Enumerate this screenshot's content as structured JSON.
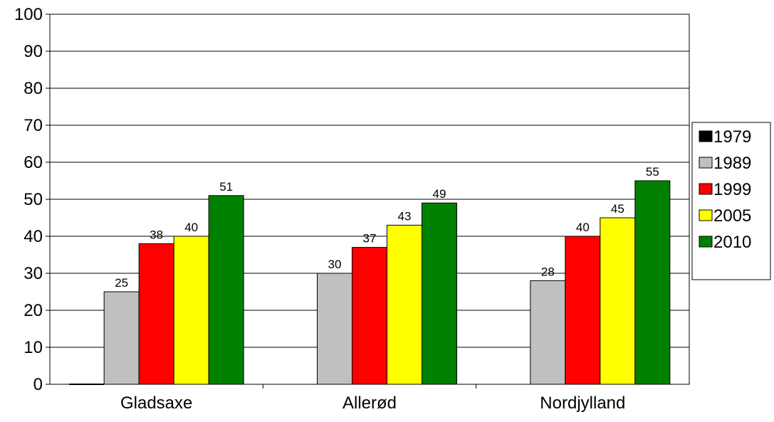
{
  "chart_data": {
    "type": "bar",
    "title": "",
    "xlabel": "",
    "ylabel": "",
    "ylim": [
      0,
      100
    ],
    "ytick_step": 10,
    "grid": true,
    "legend_position": "right",
    "categories": [
      "Gladsaxe",
      "Allerød",
      "Nordjylland"
    ],
    "series": [
      {
        "name": "1979",
        "color": "#000000",
        "values": [
          0,
          null,
          null
        ]
      },
      {
        "name": "1989",
        "color": "#c0c0c0",
        "values": [
          25,
          30,
          28
        ]
      },
      {
        "name": "1999",
        "color": "#ff0000",
        "values": [
          38,
          37,
          40
        ]
      },
      {
        "name": "2005",
        "color": "#ffff00",
        "values": [
          40,
          43,
          45
        ]
      },
      {
        "name": "2010",
        "color": "#008000",
        "values": [
          51,
          49,
          55
        ]
      }
    ]
  }
}
